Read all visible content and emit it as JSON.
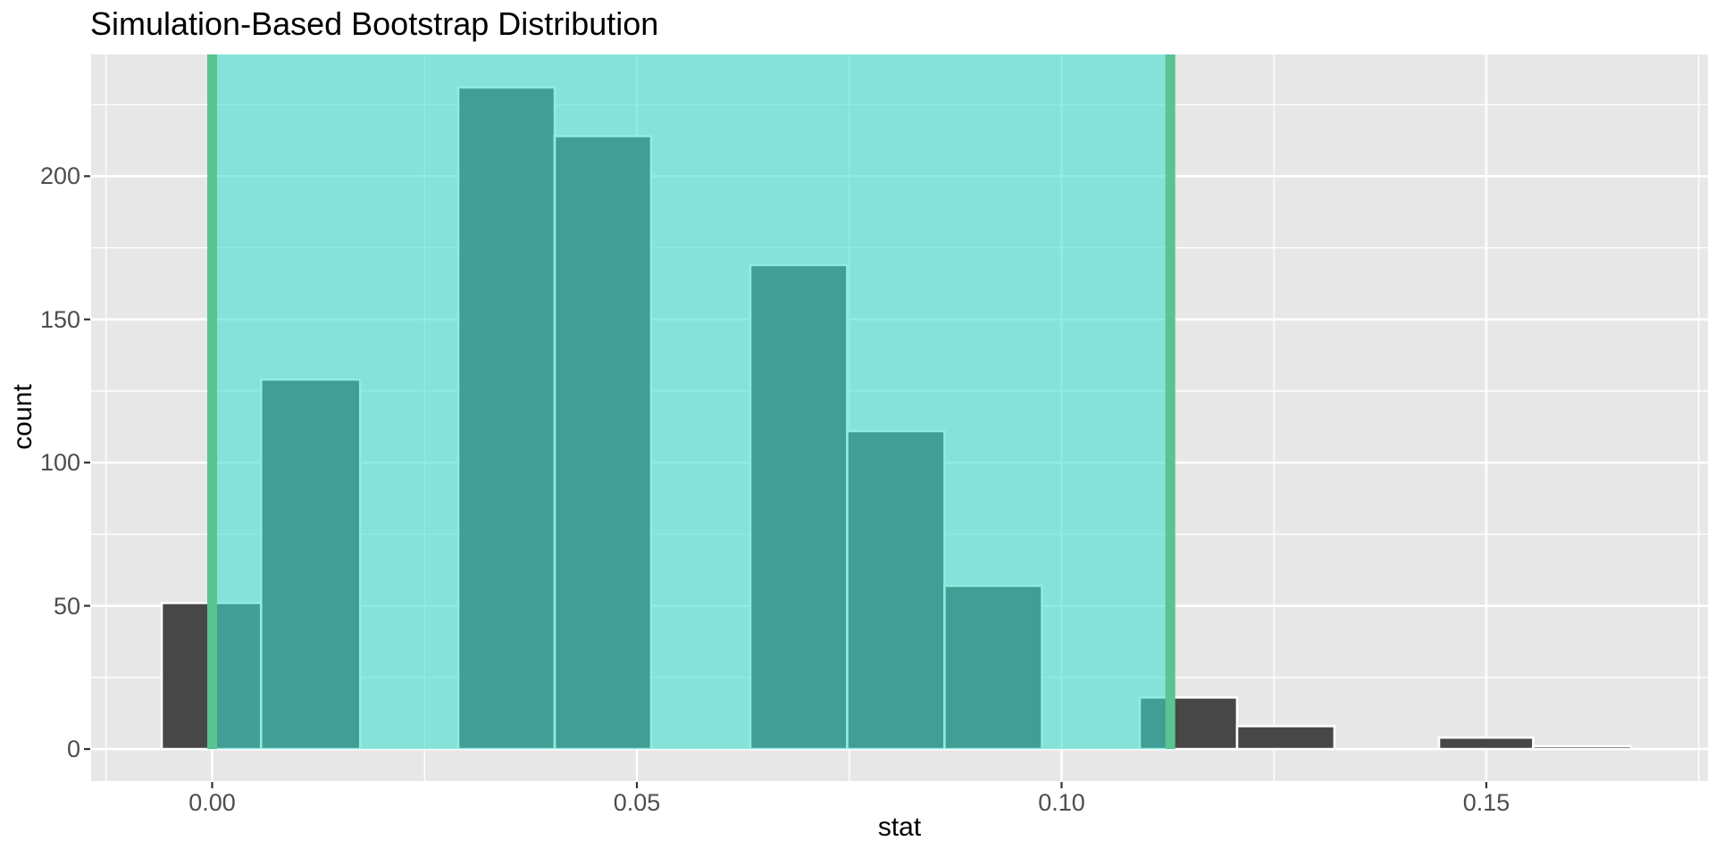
{
  "chart_data": {
    "type": "histogram",
    "title": "Simulation-Based Bootstrap Distribution",
    "xlabel": "stat",
    "ylabel": "count",
    "x_ticks": [
      {
        "value": 0,
        "label": "0.00"
      },
      {
        "value": 0.05,
        "label": "0.05"
      },
      {
        "value": 0.1,
        "label": "0.10"
      },
      {
        "value": 0.15,
        "label": "0.15"
      }
    ],
    "x_minor": [
      -0.0125,
      0.025,
      0.075,
      0.125,
      0.175
    ],
    "y_ticks": [
      {
        "value": 0,
        "label": "0"
      },
      {
        "value": 50,
        "label": "50"
      },
      {
        "value": 100,
        "label": "100"
      },
      {
        "value": 150,
        "label": "150"
      },
      {
        "value": 200,
        "label": "200"
      }
    ],
    "y_minor": [
      25,
      75,
      125,
      175,
      225
    ],
    "xlim": [
      -0.01425,
      0.17608
    ],
    "ylim": [
      -11.2,
      242.5
    ],
    "grid": true,
    "legend": false,
    "bins": [
      {
        "x0": -0.00594,
        "x1": 0.00576,
        "count": 51
      },
      {
        "x0": 0.00576,
        "x1": 0.01743,
        "count": 129
      },
      {
        "x0": 0.02897,
        "x1": 0.04033,
        "count": 231
      },
      {
        "x0": 0.04033,
        "x1": 0.05168,
        "count": 214
      },
      {
        "x0": 0.06335,
        "x1": 0.07476,
        "count": 169
      },
      {
        "x0": 0.07476,
        "x1": 0.08622,
        "count": 111
      },
      {
        "x0": 0.08622,
        "x1": 0.09769,
        "count": 57
      },
      {
        "x0": 0.1092,
        "x1": 0.12066,
        "count": 18
      },
      {
        "x0": 0.12066,
        "x1": 0.13212,
        "count": 8
      },
      {
        "x0": 0.14443,
        "x1": 0.15552,
        "count": 4
      },
      {
        "x0": 0.15552,
        "x1": 0.16704,
        "count": 1
      }
    ],
    "confidence_interval": {
      "lower": 0.0,
      "upper": 0.1128
    },
    "colors": {
      "panel_bg": "#E7E7E7",
      "grid": "#FFFFFF",
      "bar_fill": "#474747",
      "bar_stroke": "#FFFFFF",
      "shade_fill": "#3EDFCD",
      "shade_opacity": 0.58,
      "ci_line": "#57C491",
      "tick_mark": "#333333",
      "tick_label": "#4D4D4D",
      "text": "#000000"
    }
  }
}
